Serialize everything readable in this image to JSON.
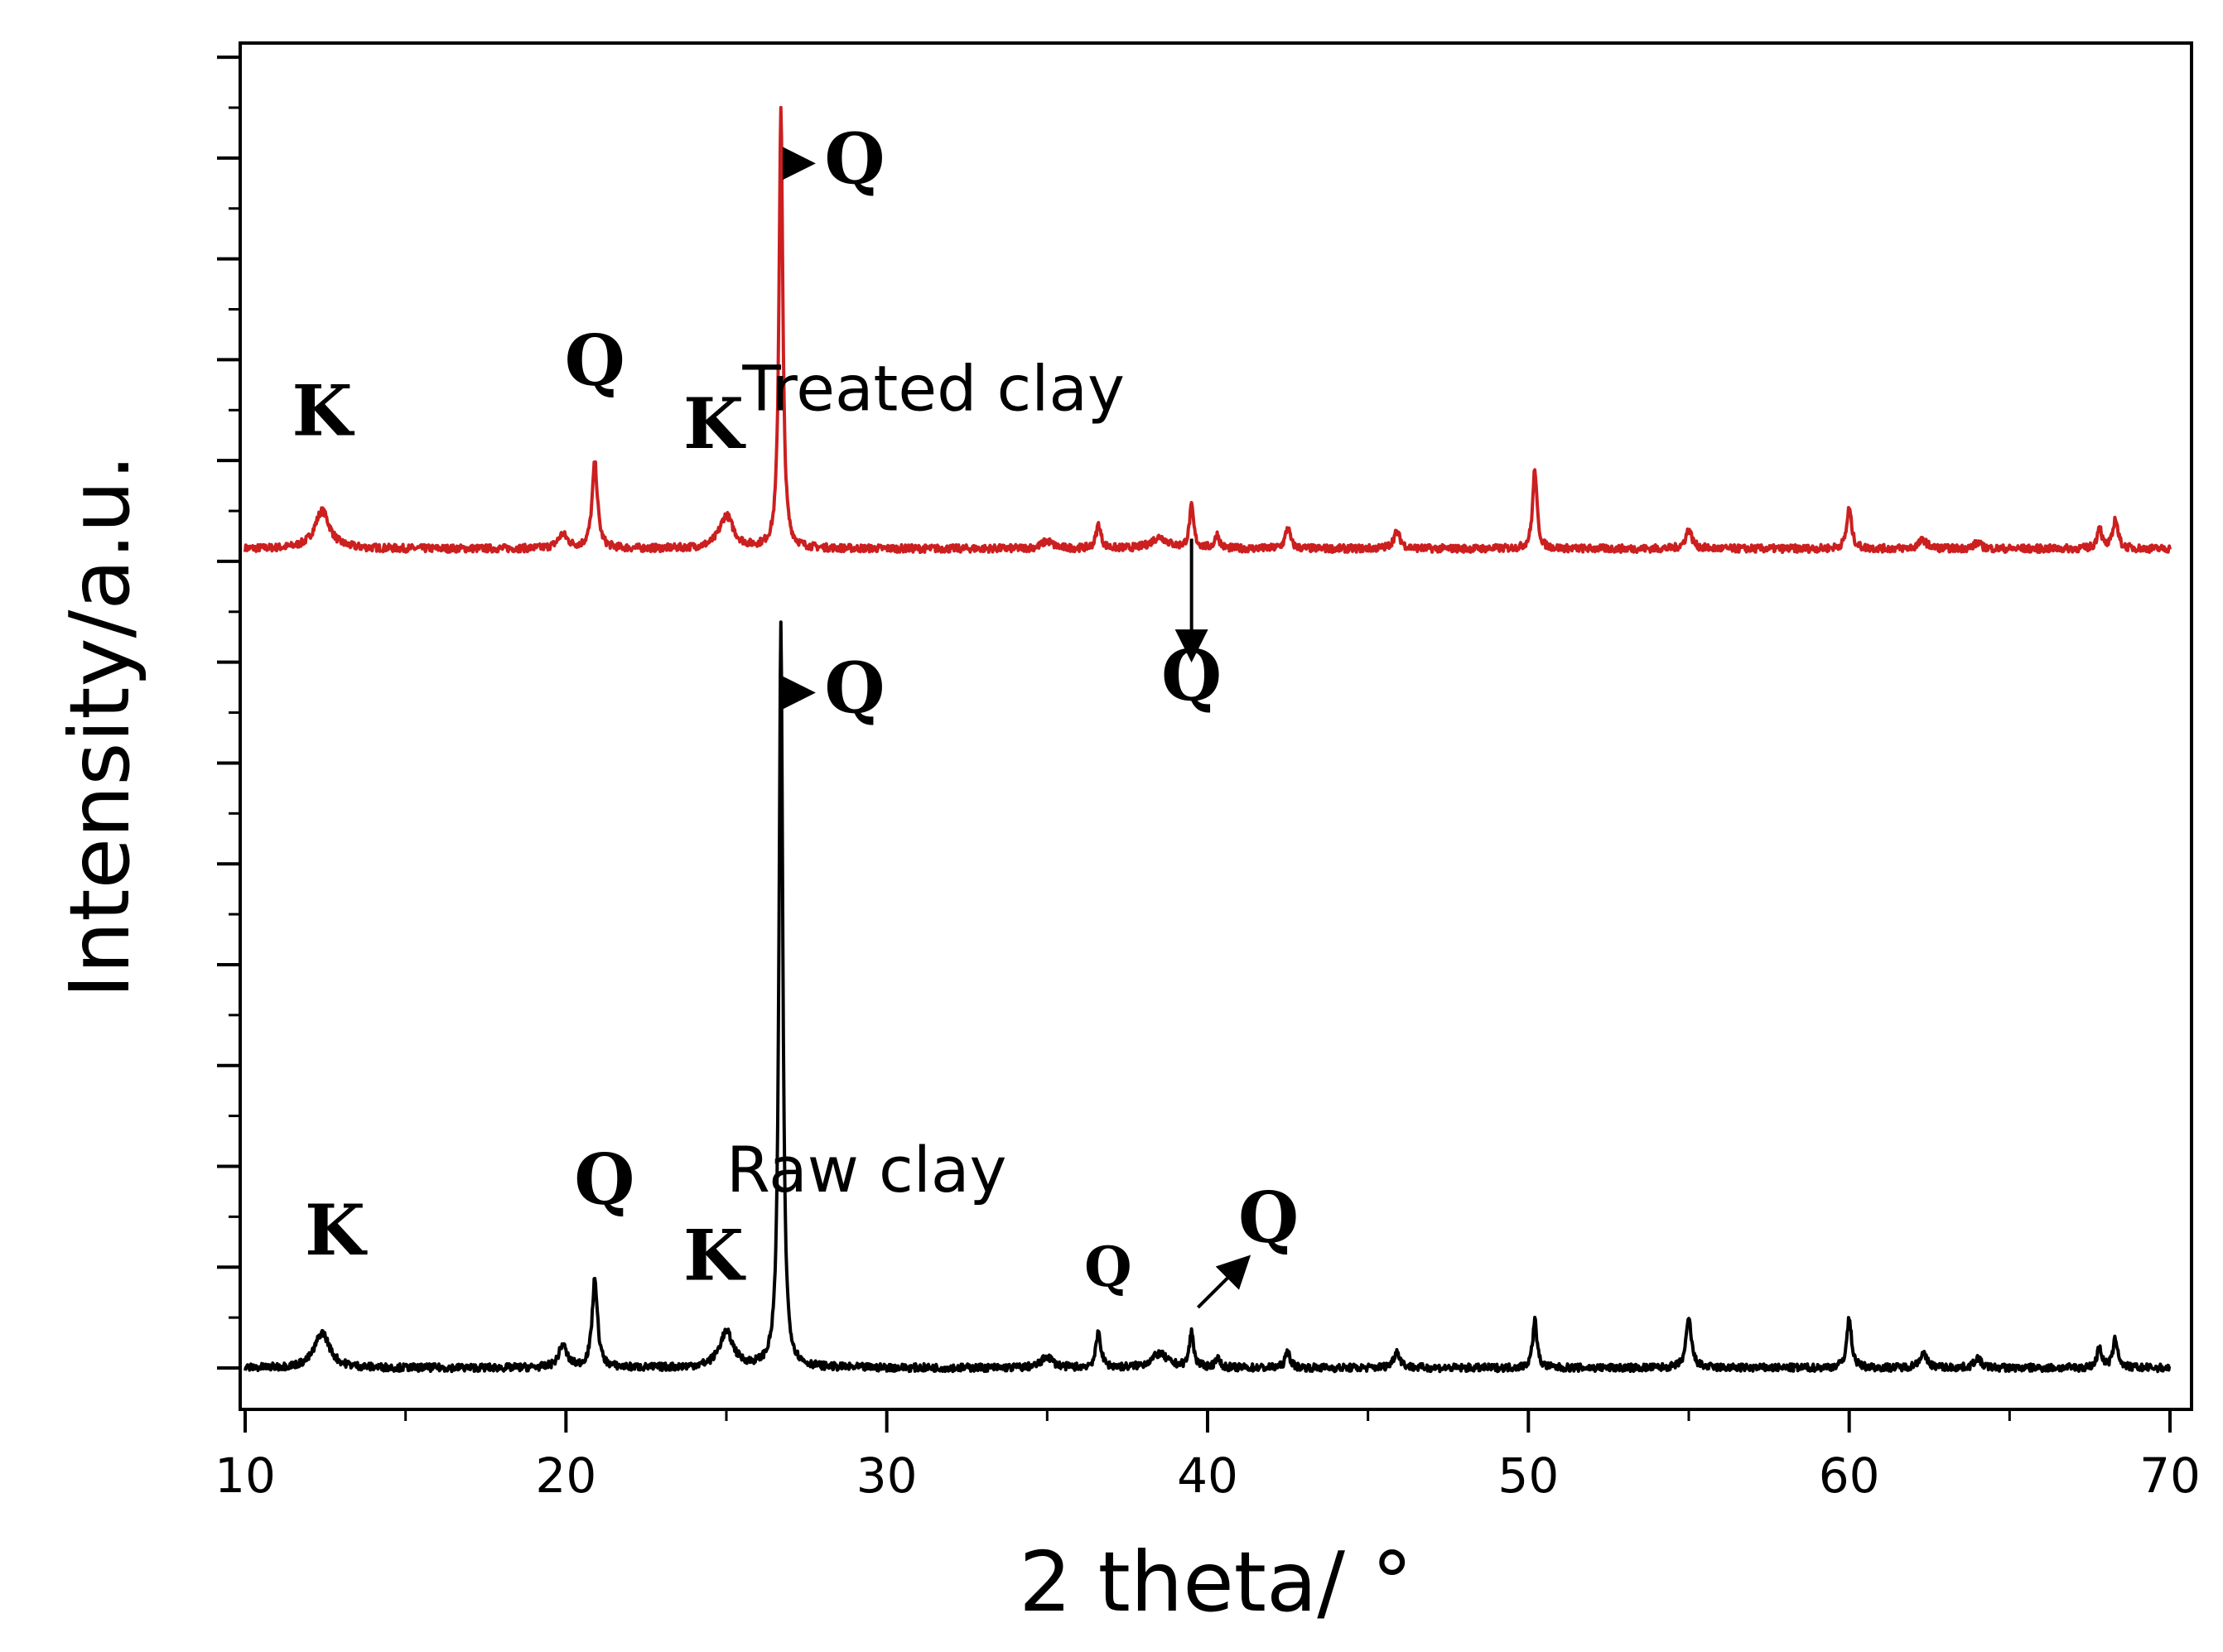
{
  "chart_data": {
    "type": "line",
    "title": "",
    "xlabel": "2 theta/ °",
    "ylabel": "Intensity/a.u.",
    "xlim": [
      10,
      70
    ],
    "ylim": [
      0,
      100
    ],
    "x_ticks": [
      "10",
      "20",
      "30",
      "40",
      "50",
      "60",
      "70"
    ],
    "y_tick_labels": false,
    "grid": false,
    "legend": "none",
    "series": [
      {
        "name": "Treated clay",
        "color": "#cc1f1f",
        "baseline": 65,
        "peaks": [
          {
            "x": 12.4,
            "h": 3.0,
            "w": 0.28
          },
          {
            "x": 19.9,
            "h": 1.1,
            "w": 0.18
          },
          {
            "x": 20.9,
            "h": 6.8,
            "w": 0.1
          },
          {
            "x": 25.0,
            "h": 2.6,
            "w": 0.26
          },
          {
            "x": 26.7,
            "h": 35.0,
            "w": 0.07
          },
          {
            "x": 35.0,
            "h": 0.6,
            "w": 0.2
          },
          {
            "x": 36.6,
            "h": 1.9,
            "w": 0.09
          },
          {
            "x": 38.5,
            "h": 0.9,
            "w": 0.3
          },
          {
            "x": 39.5,
            "h": 3.3,
            "w": 0.08
          },
          {
            "x": 40.3,
            "h": 1.1,
            "w": 0.08
          },
          {
            "x": 42.5,
            "h": 1.7,
            "w": 0.09
          },
          {
            "x": 45.9,
            "h": 1.3,
            "w": 0.13
          },
          {
            "x": 50.2,
            "h": 6.3,
            "w": 0.08
          },
          {
            "x": 55.0,
            "h": 1.5,
            "w": 0.12
          },
          {
            "x": 60.0,
            "h": 3.2,
            "w": 0.09
          },
          {
            "x": 62.3,
            "h": 0.7,
            "w": 0.15
          },
          {
            "x": 64.0,
            "h": 0.5,
            "w": 0.12
          },
          {
            "x": 67.8,
            "h": 1.8,
            "w": 0.08
          },
          {
            "x": 68.3,
            "h": 2.4,
            "w": 0.09
          }
        ],
        "labels": [
          {
            "text": "K",
            "x": 12.4,
            "y": 74
          },
          {
            "text": "Q",
            "x": 20.9,
            "y": 78
          },
          {
            "text": "K",
            "x": 24.6,
            "y": 73
          }
        ]
      },
      {
        "name": "Raw clay",
        "color": "#000000",
        "baseline": 0,
        "peaks": [
          {
            "x": 12.4,
            "h": 2.8,
            "w": 0.28
          },
          {
            "x": 19.9,
            "h": 1.8,
            "w": 0.15
          },
          {
            "x": 20.9,
            "h": 7.0,
            "w": 0.1
          },
          {
            "x": 25.0,
            "h": 2.8,
            "w": 0.26
          },
          {
            "x": 26.7,
            "h": 59.0,
            "w": 0.07
          },
          {
            "x": 35.0,
            "h": 0.9,
            "w": 0.2
          },
          {
            "x": 36.6,
            "h": 2.8,
            "w": 0.09
          },
          {
            "x": 38.5,
            "h": 1.1,
            "w": 0.3
          },
          {
            "x": 39.5,
            "h": 2.8,
            "w": 0.08
          },
          {
            "x": 40.3,
            "h": 0.8,
            "w": 0.08
          },
          {
            "x": 42.5,
            "h": 1.3,
            "w": 0.09
          },
          {
            "x": 45.9,
            "h": 1.3,
            "w": 0.12
          },
          {
            "x": 50.2,
            "h": 3.8,
            "w": 0.08
          },
          {
            "x": 55.0,
            "h": 3.9,
            "w": 0.1
          },
          {
            "x": 60.0,
            "h": 3.9,
            "w": 0.09
          },
          {
            "x": 62.3,
            "h": 1.1,
            "w": 0.15
          },
          {
            "x": 64.0,
            "h": 0.8,
            "w": 0.12
          },
          {
            "x": 67.8,
            "h": 1.7,
            "w": 0.08
          },
          {
            "x": 68.3,
            "h": 2.3,
            "w": 0.09
          }
        ],
        "labels": [
          {
            "text": "K",
            "x": 12.8,
            "y": 9
          },
          {
            "text": "Q",
            "x": 21.2,
            "y": 13
          },
          {
            "text": "K",
            "x": 24.6,
            "y": 7
          },
          {
            "text": "Q",
            "x": 36.9,
            "y": 6.5
          }
        ]
      }
    ],
    "annotations": [
      {
        "text": "Q",
        "arrow": "right",
        "x": 29.0,
        "y": 94
      },
      {
        "text": "Q",
        "arrow": "right",
        "x": 29.0,
        "y": 52
      },
      {
        "text": "Q",
        "arrow": "down",
        "x": 39.5,
        "y": 53
      },
      {
        "text": "Q",
        "arrow": "up-right",
        "x": 41.9,
        "y": 10
      }
    ],
    "series_titles": [
      {
        "text": "Treated clay",
        "x": 25.5,
        "y": 76
      },
      {
        "text": "Raw clay",
        "x": 25.0,
        "y": 14
      }
    ]
  }
}
